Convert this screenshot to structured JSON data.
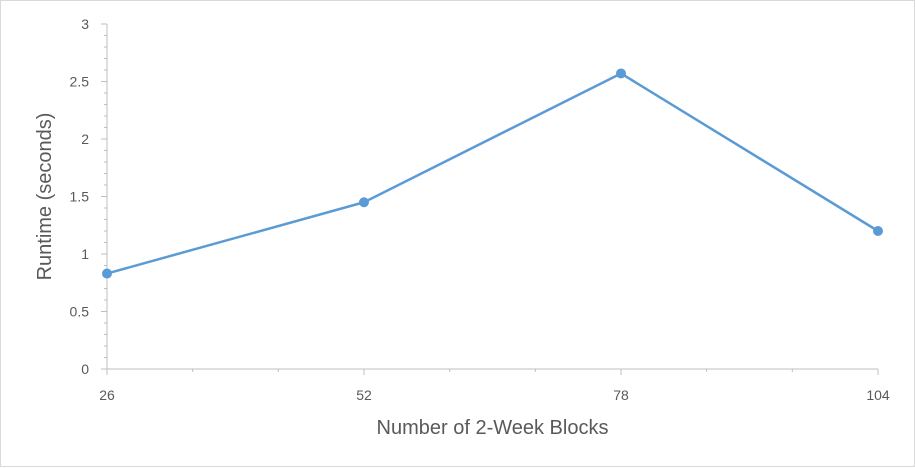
{
  "chart_data": {
    "type": "line",
    "title": "",
    "xlabel": "Number of 2-Week Blocks",
    "ylabel": "Runtime (seconds)",
    "categories": [
      "26",
      "52",
      "78",
      "104"
    ],
    "series": [
      {
        "name": "Runtime",
        "values": [
          0.83,
          1.45,
          2.57,
          1.2
        ]
      }
    ],
    "ylim": [
      0,
      3
    ],
    "yticks": [
      0,
      0.5,
      1,
      1.5,
      2,
      2.5,
      3
    ],
    "ytick_labels": [
      "0",
      "0.5",
      "1",
      "1.5",
      "2",
      "2.5",
      "3"
    ],
    "grid": false,
    "legend": "none",
    "colors": {
      "series": "#5b9bd5",
      "axis": "#bfbfbf",
      "text": "#595959"
    }
  }
}
